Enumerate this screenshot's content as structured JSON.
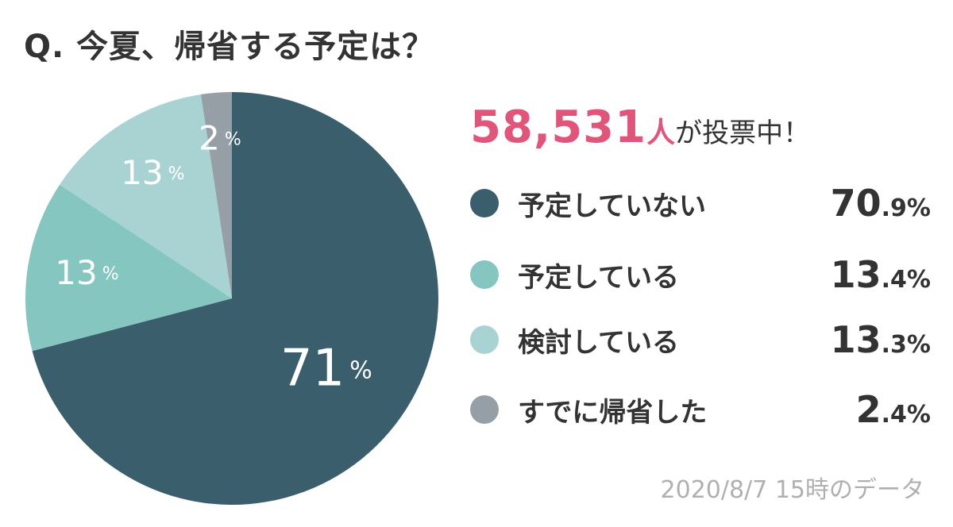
{
  "title": "Q. 今夏、帰省する予定は？",
  "votes": {
    "count": "58,531",
    "unit": "人",
    "suffix": "が投票中！"
  },
  "footnote": "2020/8/7 15時のデータ",
  "chart_data": {
    "type": "pie",
    "title": "Q. 今夏、帰省する予定は？",
    "start_angle": "12 o'clock, clockwise",
    "slices": [
      {
        "label": "予定していない",
        "value": 70.9,
        "display": "70.9%",
        "pie_label": "71",
        "color": "#3b5e6c"
      },
      {
        "label": "予定している",
        "value": 13.4,
        "display": "13.4%",
        "pie_label": "13",
        "color": "#86c6c1"
      },
      {
        "label": "検討している",
        "value": 13.3,
        "display": "13.3%",
        "pie_label": "13",
        "color": "#a9d3d2"
      },
      {
        "label": "すでに帰省した",
        "value": 2.4,
        "display": "2.4%",
        "pie_label": "2",
        "color": "#969fa6"
      }
    ],
    "pie_label_suffix": "%"
  }
}
